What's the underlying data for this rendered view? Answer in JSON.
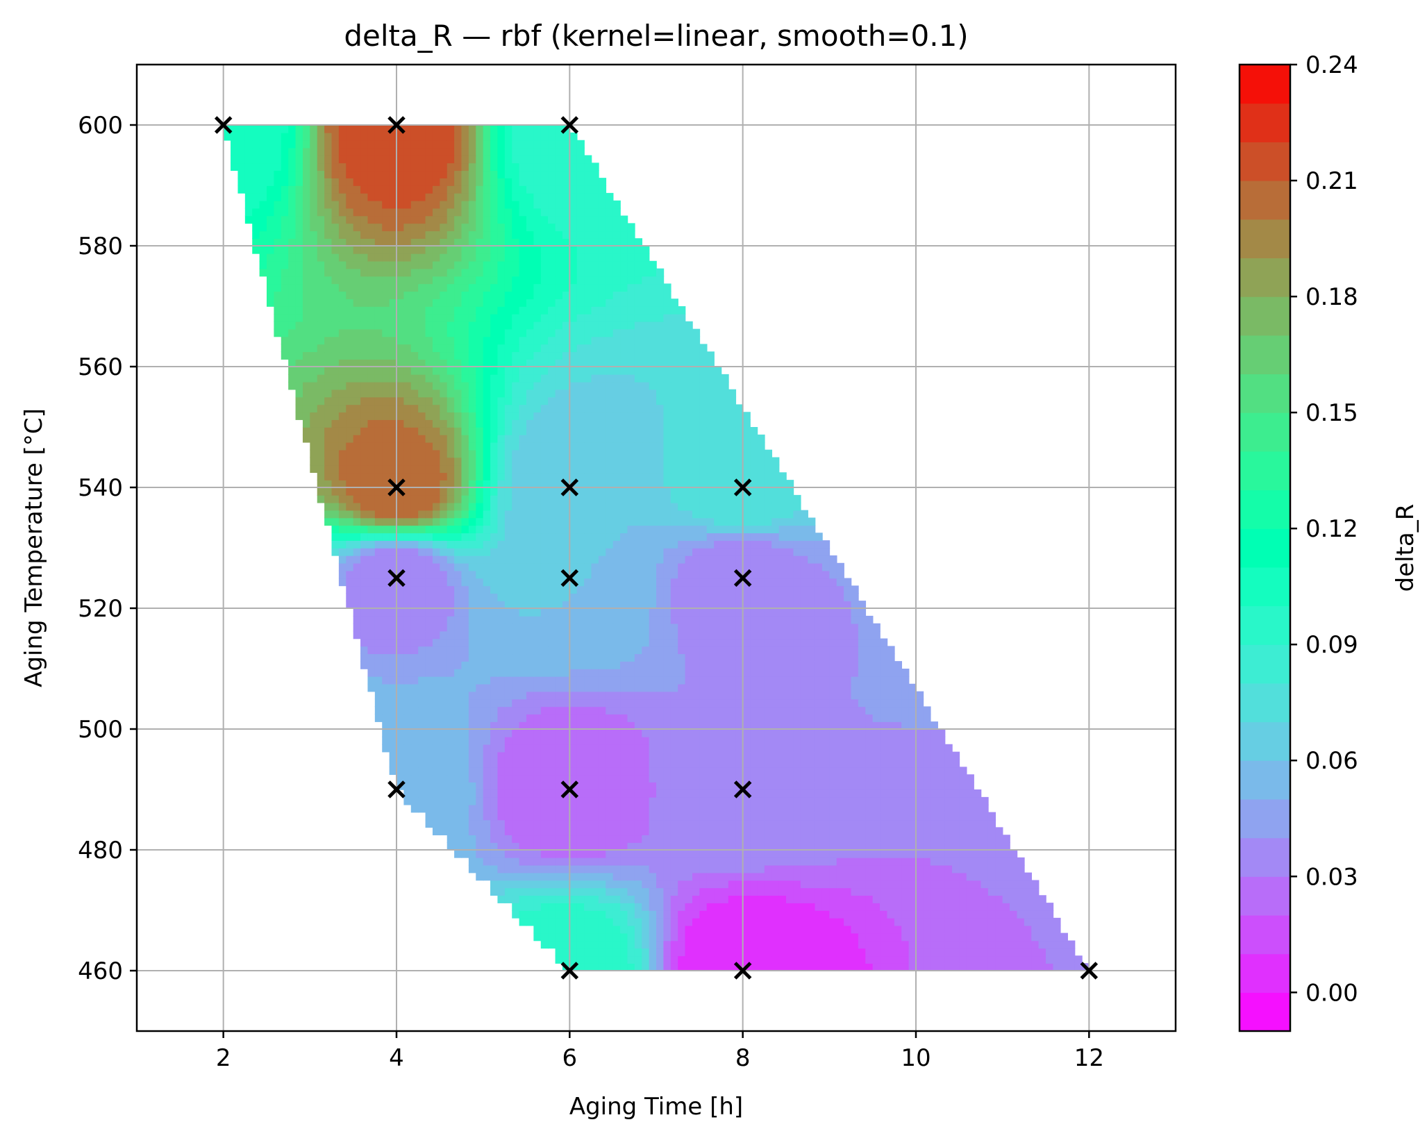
{
  "chart_data": {
    "type": "heatmap",
    "title": "delta_R — rbf (kernel=linear, smooth=0.1)",
    "xlabel": "Aging Time [h]",
    "ylabel": "Aging Temperature [°C]",
    "xlim": [
      1,
      13
    ],
    "ylim": [
      450,
      610
    ],
    "x_ticks": [
      2,
      4,
      6,
      8,
      10,
      12
    ],
    "y_ticks": [
      460,
      480,
      500,
      520,
      540,
      560,
      580,
      600
    ],
    "grid": true,
    "colormap": "rainbow",
    "colorbar": {
      "label": "delta_R",
      "range": [
        -0.01,
        0.24
      ],
      "ticks": [
        "0.00",
        "0.03",
        "0.06",
        "0.09",
        "0.12",
        "0.15",
        "0.18",
        "0.21",
        "0.24"
      ],
      "levels": 25
    },
    "domain_polygon": [
      {
        "x": 2,
        "y": 600
      },
      {
        "x": 6,
        "y": 600
      },
      {
        "x": 12,
        "y": 460
      },
      {
        "x": 6,
        "y": 460
      },
      {
        "x": 4,
        "y": 490
      },
      {
        "x": 2,
        "y": 600
      }
    ],
    "measured_points": [
      {
        "x": 2,
        "y": 600,
        "value": 0.1
      },
      {
        "x": 4,
        "y": 600,
        "value": 0.22
      },
      {
        "x": 6,
        "y": 600,
        "value": 0.09
      },
      {
        "x": 4,
        "y": 540,
        "value": 0.21
      },
      {
        "x": 6,
        "y": 540,
        "value": 0.06
      },
      {
        "x": 8,
        "y": 540,
        "value": 0.08
      },
      {
        "x": 4,
        "y": 525,
        "value": 0.03
      },
      {
        "x": 6,
        "y": 525,
        "value": 0.06
      },
      {
        "x": 8,
        "y": 525,
        "value": 0.03
      },
      {
        "x": 4,
        "y": 490,
        "value": 0.06
      },
      {
        "x": 6,
        "y": 490,
        "value": 0.02
      },
      {
        "x": 8,
        "y": 490,
        "value": 0.04
      },
      {
        "x": 6,
        "y": 460,
        "value": 0.1
      },
      {
        "x": 8,
        "y": 460,
        "value": 0.0
      },
      {
        "x": 12,
        "y": 460,
        "value": 0.03
      }
    ],
    "marker": "x",
    "marker_color": "#000000"
  }
}
